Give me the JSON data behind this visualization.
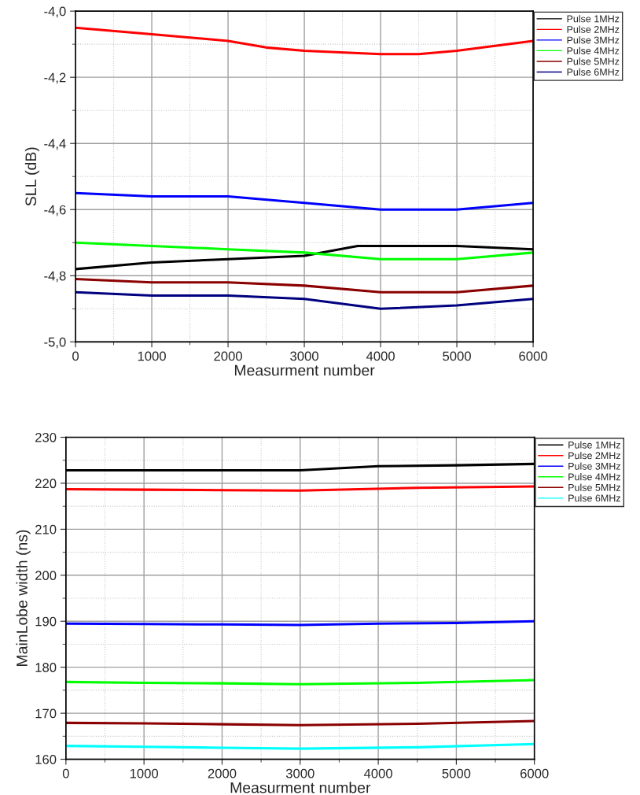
{
  "chart_data": [
    {
      "type": "line",
      "ylabel": "SLL (dB)",
      "xlabel": "Measurment number",
      "xlim": [
        0,
        6000
      ],
      "xticks": [
        0,
        1000,
        2000,
        3000,
        4000,
        5000,
        6000
      ],
      "ylim": [
        -5.0,
        -4.0
      ],
      "yticks": [
        {
          "value": -5.0,
          "label": "-5,0"
        },
        {
          "value": -4.8,
          "label": "-4,8"
        },
        {
          "value": -4.6,
          "label": "-4,6"
        },
        {
          "value": -4.4,
          "label": "-4,4"
        },
        {
          "value": -4.2,
          "label": "-4,2"
        },
        {
          "value": -4.0,
          "label": "-4,0"
        }
      ],
      "grid": true,
      "legend": "right",
      "marker": "none",
      "line_style": "solid",
      "series": [
        {
          "name": "Pulse 1MHz",
          "color": "#000000",
          "x": [
            0,
            1000,
            2000,
            3000,
            3700,
            4000,
            5000,
            6000
          ],
          "values": [
            -4.78,
            -4.76,
            -4.75,
            -4.74,
            -4.71,
            -4.71,
            -4.71,
            -4.72
          ]
        },
        {
          "name": "Pulse 2MHz",
          "color": "#ff0000",
          "x": [
            0,
            1000,
            2000,
            2500,
            3000,
            4000,
            4500,
            5000,
            6000
          ],
          "values": [
            -4.05,
            -4.07,
            -4.09,
            -4.11,
            -4.12,
            -4.13,
            -4.13,
            -4.12,
            -4.09
          ]
        },
        {
          "name": "Pulse 3MHz",
          "color": "#0000ff",
          "x": [
            0,
            1000,
            2000,
            3000,
            4000,
            5000,
            6000
          ],
          "values": [
            -4.55,
            -4.56,
            -4.56,
            -4.58,
            -4.6,
            -4.6,
            -4.58
          ]
        },
        {
          "name": "Pulse 4MHz",
          "color": "#00ff00",
          "x": [
            0,
            1000,
            2000,
            3000,
            4000,
            5000,
            6000
          ],
          "values": [
            -4.7,
            -4.71,
            -4.72,
            -4.73,
            -4.75,
            -4.75,
            -4.73
          ]
        },
        {
          "name": "Pulse 5MHz",
          "color": "#8b0000",
          "x": [
            0,
            1000,
            2000,
            3000,
            4000,
            5000,
            6000
          ],
          "values": [
            -4.81,
            -4.82,
            -4.82,
            -4.83,
            -4.85,
            -4.85,
            -4.83
          ]
        },
        {
          "name": "Pulse 6MHz",
          "color": "#000080",
          "x": [
            0,
            1000,
            2000,
            3000,
            4000,
            5000,
            6000
          ],
          "values": [
            -4.85,
            -4.86,
            -4.86,
            -4.87,
            -4.9,
            -4.89,
            -4.87
          ]
        }
      ]
    },
    {
      "type": "line",
      "ylabel": "MainLobe width (ns)",
      "xlabel": "Measurment number",
      "xlim": [
        0,
        6000
      ],
      "xticks": [
        0,
        1000,
        2000,
        3000,
        4000,
        5000,
        6000
      ],
      "ylim": [
        160,
        230
      ],
      "yticks": [
        160,
        170,
        180,
        190,
        200,
        210,
        220,
        230
      ],
      "grid": true,
      "legend": "right",
      "marker": "none",
      "line_style": "solid",
      "series": [
        {
          "name": "Pulse 1MHz",
          "color": "#000000",
          "x": [
            0,
            1000,
            2000,
            3000,
            4000,
            5000,
            6000
          ],
          "values": [
            222.8,
            222.8,
            222.8,
            222.8,
            223.7,
            223.9,
            224.2
          ]
        },
        {
          "name": "Pulse 2MHz",
          "color": "#ff0000",
          "x": [
            0,
            1000,
            2000,
            3000,
            4500,
            6000
          ],
          "values": [
            218.7,
            218.6,
            218.5,
            218.4,
            219.0,
            219.3
          ]
        },
        {
          "name": "Pulse 3MHz",
          "color": "#0000ff",
          "x": [
            0,
            1000,
            2000,
            3000,
            4000,
            5000,
            6000
          ],
          "values": [
            189.5,
            189.4,
            189.3,
            189.2,
            189.5,
            189.6,
            190.0
          ]
        },
        {
          "name": "Pulse 4MHz",
          "color": "#00ff00",
          "x": [
            0,
            1000,
            2000,
            3000,
            4500,
            6000
          ],
          "values": [
            176.8,
            176.6,
            176.5,
            176.3,
            176.6,
            177.2
          ]
        },
        {
          "name": "Pulse 5MHz",
          "color": "#8b0000",
          "x": [
            0,
            1000,
            2000,
            3000,
            4500,
            6000
          ],
          "values": [
            167.9,
            167.8,
            167.6,
            167.4,
            167.7,
            168.3
          ]
        },
        {
          "name": "Pulse 6MHz",
          "color": "#00ffff",
          "x": [
            0,
            1000,
            2000,
            3000,
            4500,
            6000
          ],
          "values": [
            162.9,
            162.7,
            162.5,
            162.3,
            162.6,
            163.3
          ]
        }
      ]
    }
  ]
}
